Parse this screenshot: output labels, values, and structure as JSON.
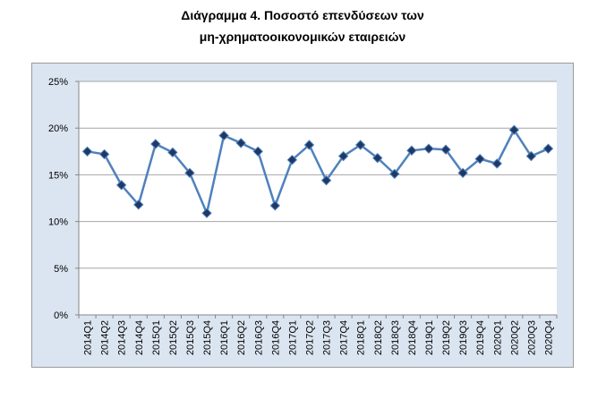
{
  "chart_data": {
    "type": "line",
    "title": [
      "Διάγραμμα 4. Ποσοστό επενδύσεων των",
      "μη-χρηματοοικονομικών εταιρειών"
    ],
    "categories": [
      "2014Q1",
      "2014Q2",
      "2014Q3",
      "2014Q4",
      "2015Q1",
      "2015Q2",
      "2015Q3",
      "2015Q4",
      "2016Q1",
      "2016Q2",
      "2016Q3",
      "2016Q4",
      "2017Q1",
      "2017Q2",
      "2017Q3",
      "2017Q4",
      "2018Q1",
      "2018Q2",
      "2018Q3",
      "2018Q4",
      "2019Q1",
      "2019Q2",
      "2019Q3",
      "2019Q4",
      "2020Q1",
      "2020Q2",
      "2020Q3",
      "2020Q4"
    ],
    "series": [
      {
        "color": "#4f81bd",
        "marker_color": "#1f3864",
        "values": [
          17.5,
          17.2,
          13.9,
          11.8,
          18.3,
          17.4,
          15.2,
          10.9,
          19.2,
          18.4,
          17.5,
          11.7,
          16.6,
          18.2,
          14.4,
          17.0,
          18.2,
          16.8,
          15.1,
          17.6,
          17.8,
          17.7,
          15.2,
          16.7,
          16.2,
          19.8,
          17.0,
          17.8
        ]
      }
    ],
    "ylim": [
      0,
      25
    ],
    "yticks": [
      {
        "value": 0,
        "label": "0%"
      },
      {
        "value": 5,
        "label": "5%"
      },
      {
        "value": 10,
        "label": "10%"
      },
      {
        "value": 15,
        "label": "15%"
      },
      {
        "value": 20,
        "label": "20%"
      },
      {
        "value": 25,
        "label": "25%"
      }
    ],
    "grid": true
  }
}
